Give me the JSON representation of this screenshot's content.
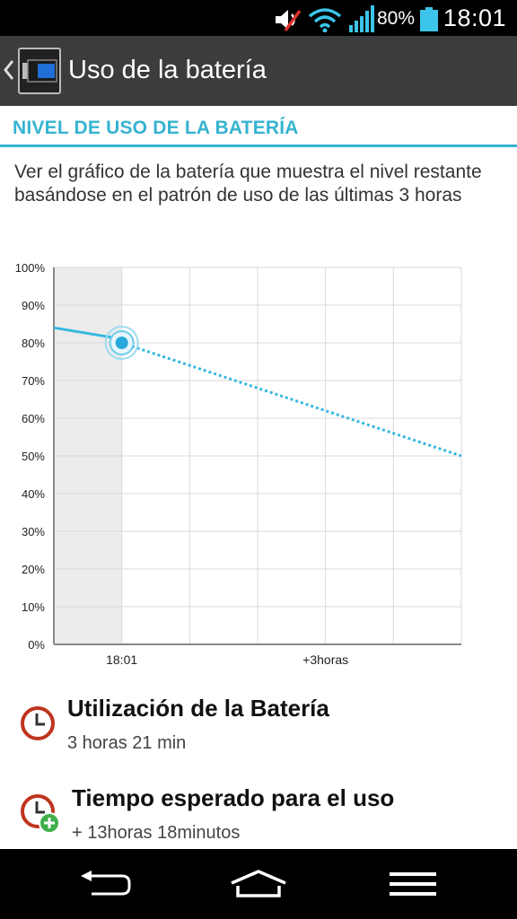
{
  "status_bar": {
    "time": "18:01",
    "battery_percent": "80%",
    "battery_level": 0.8,
    "icons": [
      "mute-icon",
      "wifi-icon",
      "signal-icon",
      "battery-icon"
    ]
  },
  "action_bar": {
    "title": "Uso de la batería",
    "icons": [
      "back-icon",
      "battery-app-icon"
    ]
  },
  "section": {
    "header": "NIVEL DE USO DE LA BATERÍA"
  },
  "description": "Ver el gráfico de la batería que muestra el nivel restante basándose en el patrón de uso de las últimas 3 horas",
  "chart_data": {
    "type": "line",
    "yticks": [
      "100%",
      "90%",
      "80%",
      "70%",
      "60%",
      "50%",
      "40%",
      "30%",
      "20%",
      "10%",
      "0%"
    ],
    "ylim": [
      0,
      100
    ],
    "xlabels": [
      "18:01",
      "+3horas"
    ],
    "grid": true,
    "series": [
      {
        "style": "solid",
        "x": [
          -1,
          0
        ],
        "values": [
          84,
          81
        ]
      },
      {
        "style": "dotted",
        "x": [
          0,
          5
        ],
        "values": [
          80,
          50
        ]
      }
    ],
    "current_point": {
      "x": 0,
      "value": 80
    },
    "colors": {
      "line": "#36b8e0",
      "marker": "#29a8dc",
      "history_shade": "#ececec",
      "grid": "#d8d8d8",
      "axis": "#888888"
    }
  },
  "items": [
    {
      "title": "Utilización de la Batería",
      "value": "3 horas 21 min",
      "icon": "clock-icon"
    },
    {
      "title": "Tiempo esperado para el uso",
      "value": "+ 13horas 18minutos",
      "icon": "clock-plus-icon"
    }
  ],
  "nav_bar": {
    "icons": [
      "back-nav-icon",
      "home-nav-icon",
      "menu-nav-icon"
    ]
  },
  "colors": {
    "accent": "#36b3d1",
    "action_bar": "#3a3c3e",
    "status_bar": "#000000",
    "clock_red": "#c0341d",
    "plus_green": "#3fae49"
  }
}
